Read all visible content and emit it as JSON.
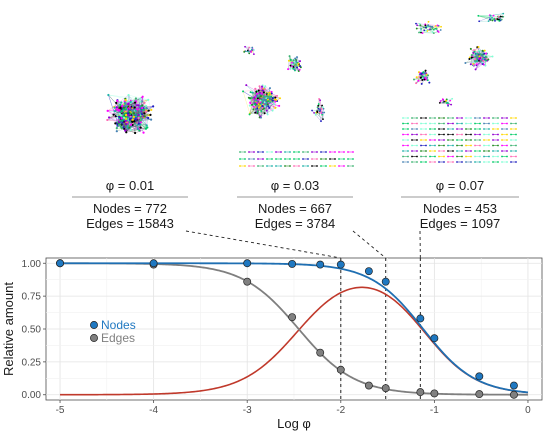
{
  "snapshots": [
    {
      "phi_label": "φ = 0.01",
      "nodes_label": "Nodes = 772",
      "edges_label": "Edges = 15843",
      "log_phi": -2.0
    },
    {
      "phi_label": "φ = 0.03",
      "nodes_label": "Nodes = 667",
      "edges_label": "Edges = 3784",
      "log_phi": -1.52
    },
    {
      "phi_label": "φ = 0.07",
      "nodes_label": "Nodes = 453",
      "edges_label": "Edges = 1097",
      "log_phi": -1.15
    }
  ],
  "network_palette": [
    "#7fffd4",
    "#1f1fbf",
    "#ff00ff",
    "#00cc66",
    "#ffd700",
    "#3cb371",
    "#9400d3",
    "#20b2aa",
    "#ff69b4",
    "#228b22",
    "#000000",
    "#4682b4"
  ],
  "chart_data": {
    "type": "line",
    "xlabel": "Log φ",
    "ylabel": "Relative amount",
    "xlim": [
      -5.15,
      0.15
    ],
    "ylim": [
      -0.04,
      1.04
    ],
    "x_ticks": [
      -5,
      -4,
      -3,
      -2,
      -1,
      0
    ],
    "x_tick_labels": [
      "-5",
      "-4",
      "-3",
      "-2",
      "-1",
      "0"
    ],
    "y_ticks": [
      0,
      0.25,
      0.5,
      0.75,
      1
    ],
    "y_tick_labels": [
      "0.00",
      "0.25",
      "0.50",
      "0.75",
      "1.00"
    ],
    "grid": true,
    "legend_position": "left-middle",
    "series": [
      {
        "name": "Nodes",
        "color": "#1f78c1",
        "fit_color": "#1f6fb2",
        "points": [
          {
            "x": -5,
            "y": 1.0
          },
          {
            "x": -4,
            "y": 1.0
          },
          {
            "x": -3,
            "y": 1.0
          },
          {
            "x": -2.52,
            "y": 0.995
          },
          {
            "x": -2.22,
            "y": 0.99
          },
          {
            "x": -2.0,
            "y": 0.99
          },
          {
            "x": -1.7,
            "y": 0.94
          },
          {
            "x": -1.52,
            "y": 0.86
          },
          {
            "x": -1.15,
            "y": 0.58
          },
          {
            "x": -1.0,
            "y": 0.43
          },
          {
            "x": -0.52,
            "y": 0.14
          },
          {
            "x": -0.15,
            "y": 0.07
          }
        ]
      },
      {
        "name": "Edges",
        "color": "#808080",
        "fit_color": "#7f7f7f",
        "points": [
          {
            "x": -5,
            "y": 1.0
          },
          {
            "x": -4,
            "y": 0.99
          },
          {
            "x": -3,
            "y": 0.86
          },
          {
            "x": -2.52,
            "y": 0.59
          },
          {
            "x": -2.22,
            "y": 0.32
          },
          {
            "x": -2.0,
            "y": 0.19
          },
          {
            "x": -1.7,
            "y": 0.07
          },
          {
            "x": -1.52,
            "y": 0.05
          },
          {
            "x": -1.15,
            "y": 0.02
          },
          {
            "x": -1.0,
            "y": 0.01
          },
          {
            "x": -0.52,
            "y": 0.005
          },
          {
            "x": -0.15,
            "y": 0.0
          }
        ]
      }
    ],
    "difference_curve_color": "#c0392b",
    "vlines": [
      -2.0,
      -1.52,
      -1.15
    ]
  }
}
